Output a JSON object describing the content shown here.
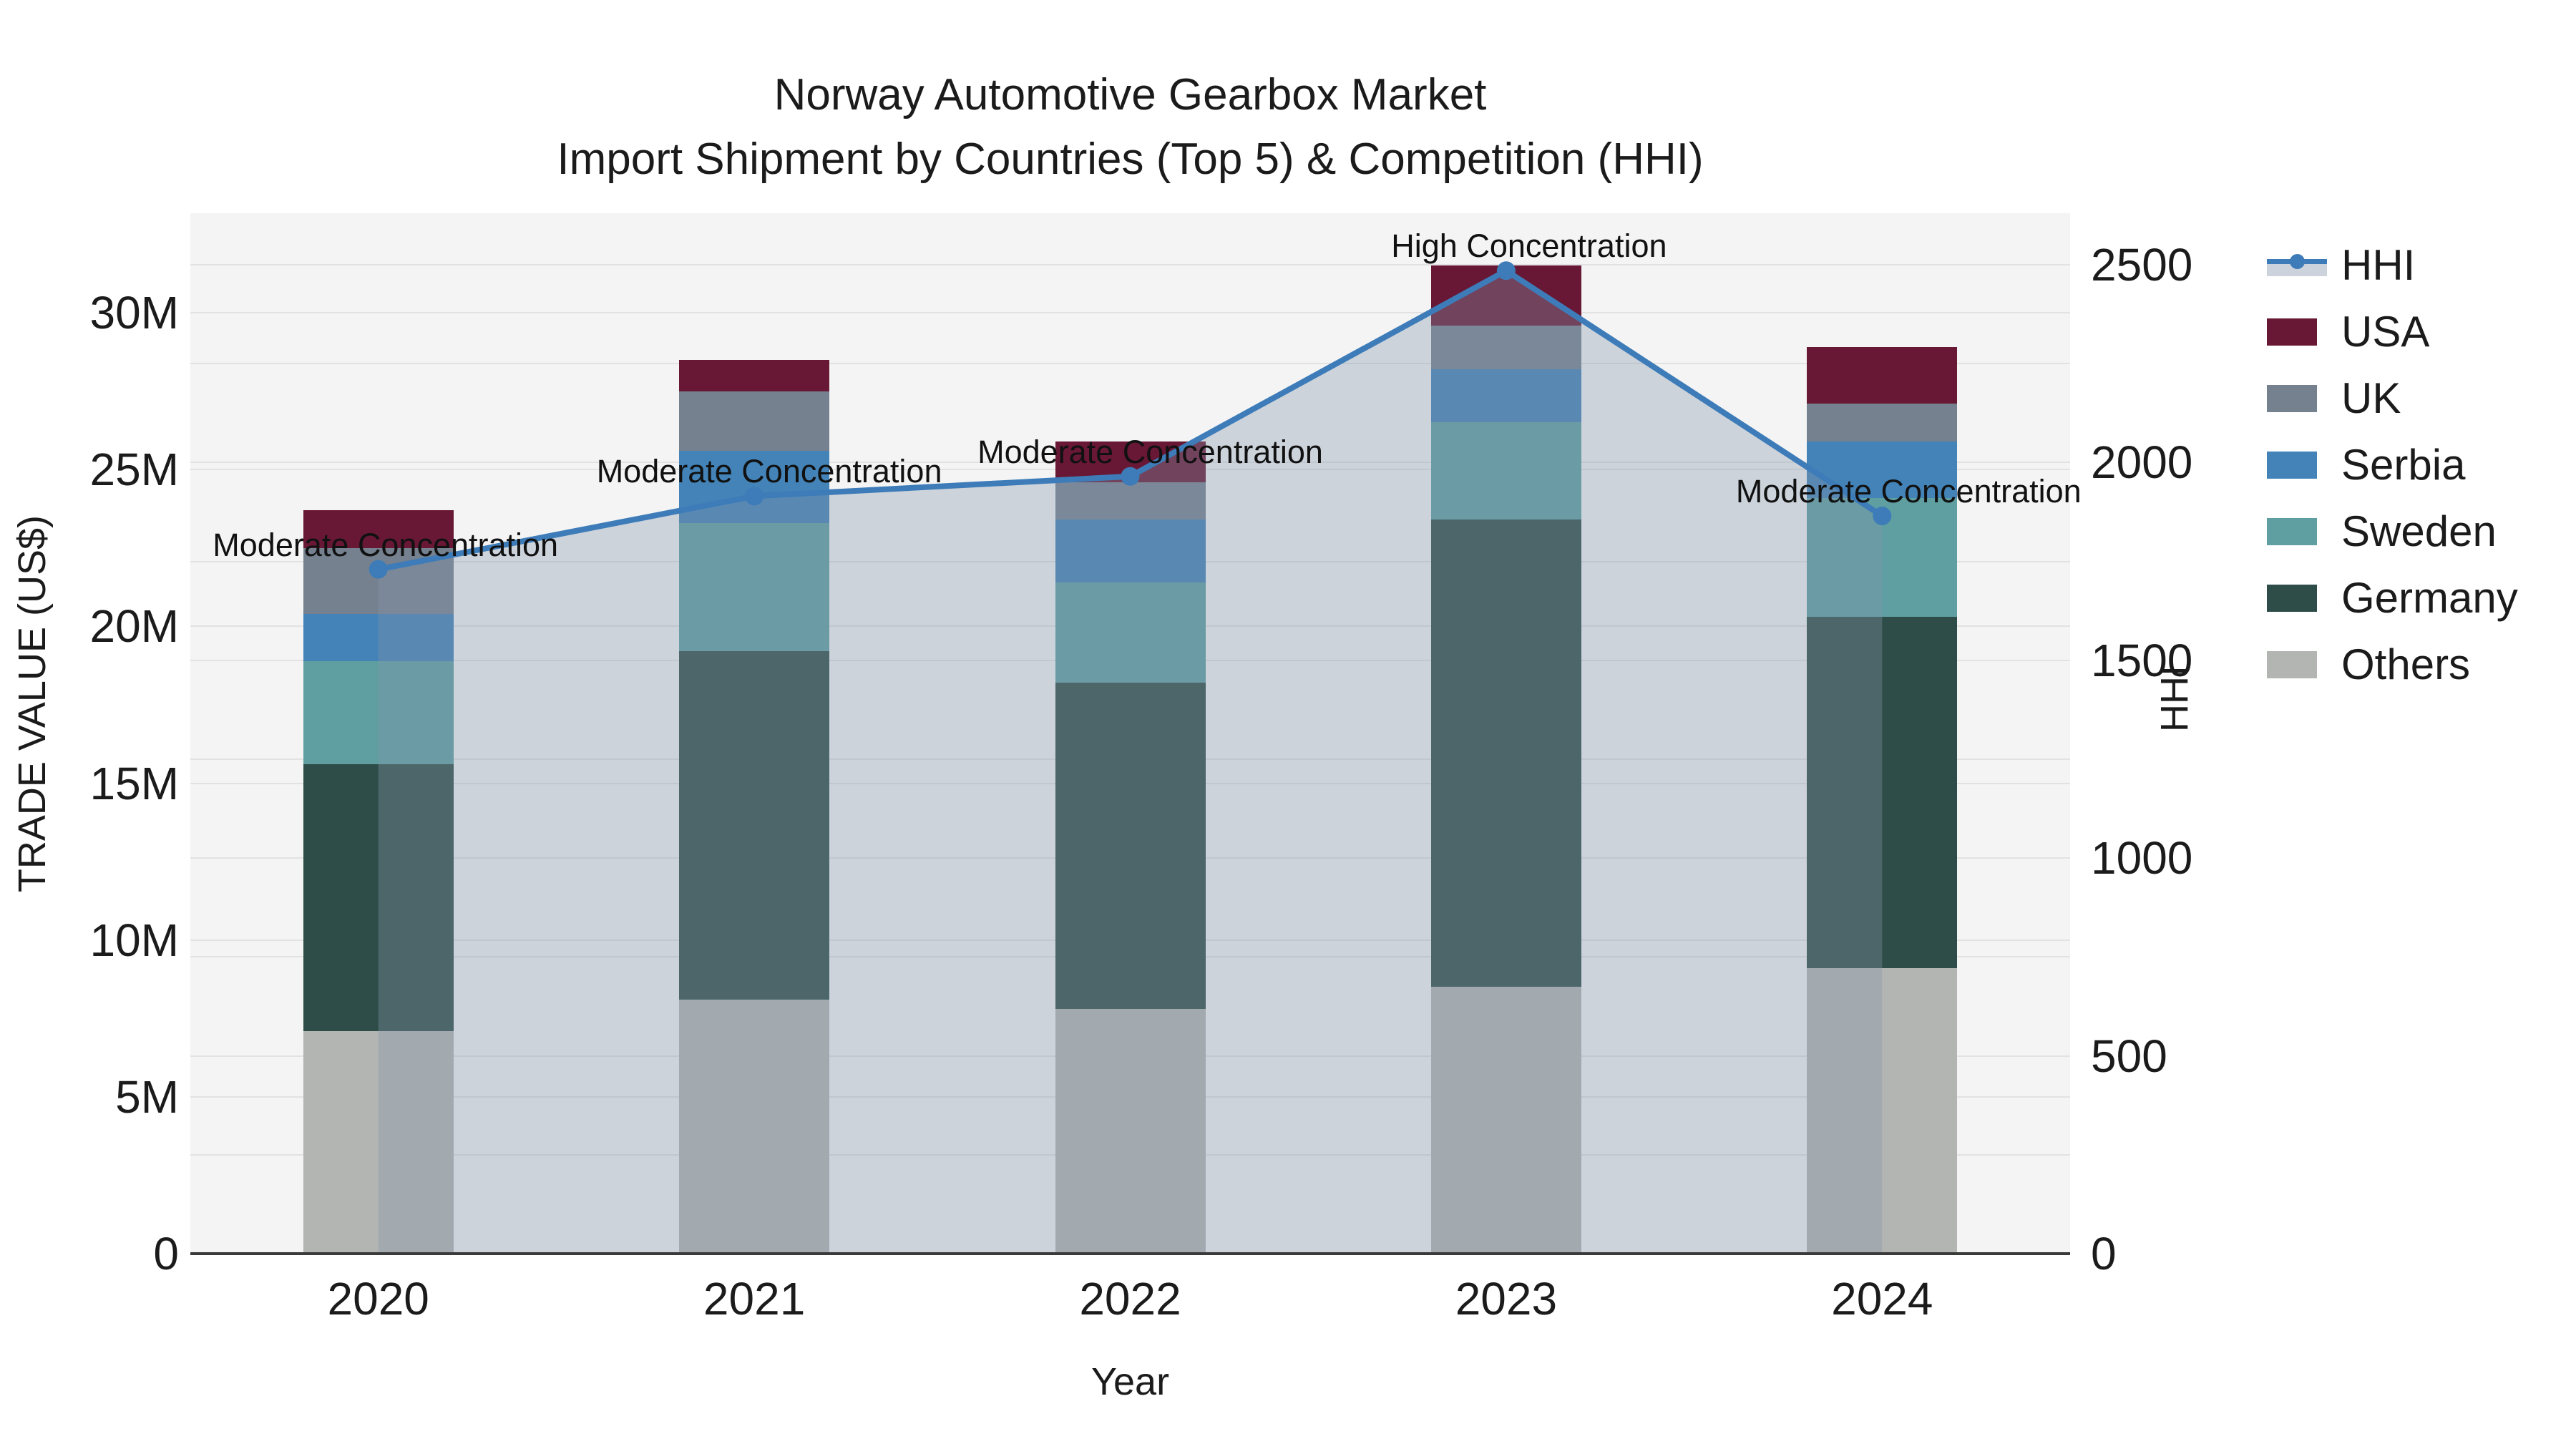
{
  "title": {
    "line1": "Norway Automotive Gearbox Market",
    "line2": "Import Shipment by Countries (Top 5) & Competition (HHI)"
  },
  "axes": {
    "x": {
      "label": "Year",
      "categories": [
        "2020",
        "2021",
        "2022",
        "2023",
        "2024"
      ]
    },
    "y_left": {
      "label": "TRADE VALUE (US$)",
      "ticks": [
        {
          "v": 0,
          "label": "0"
        },
        {
          "v": 5,
          "label": "5M"
        },
        {
          "v": 10,
          "label": "10M"
        },
        {
          "v": 15,
          "label": "15M"
        },
        {
          "v": 20,
          "label": "20M"
        },
        {
          "v": 25,
          "label": "25M"
        },
        {
          "v": 30,
          "label": "30M"
        }
      ],
      "grid_values": [
        5,
        10,
        15,
        20,
        25,
        30
      ]
    },
    "y_right": {
      "label": "HHI",
      "ticks": [
        {
          "v": 0,
          "label": "0"
        },
        {
          "v": 500,
          "label": "500"
        },
        {
          "v": 1000,
          "label": "1000"
        },
        {
          "v": 1500,
          "label": "1500"
        },
        {
          "v": 2000,
          "label": "2000"
        },
        {
          "v": 2500,
          "label": "2500"
        }
      ],
      "grid_values": [
        250,
        500,
        750,
        1000,
        1250,
        1500,
        1750,
        2000,
        2250,
        2500
      ]
    }
  },
  "chart_data": {
    "type": "bar",
    "subtype": "stacked-bars-with-line",
    "categories": [
      "2020",
      "2021",
      "2022",
      "2023",
      "2024"
    ],
    "units_left": "Million US$",
    "stack_order_bottom_to_top": [
      "Others",
      "Germany",
      "Sweden",
      "Serbia",
      "UK",
      "USA"
    ],
    "series": [
      {
        "name": "USA",
        "color": "#681834",
        "values": [
          1.2,
          1.0,
          1.3,
          1.9,
          1.8
        ]
      },
      {
        "name": "UK",
        "color": "#75818f",
        "values": [
          2.1,
          1.9,
          1.2,
          1.4,
          1.2
        ]
      },
      {
        "name": "Serbia",
        "color": "#4383b7",
        "values": [
          1.5,
          2.3,
          2.0,
          1.7,
          1.8
        ]
      },
      {
        "name": "Sweden",
        "color": "#5f9fa1",
        "values": [
          3.3,
          4.1,
          3.2,
          3.1,
          3.8
        ]
      },
      {
        "name": "Germany",
        "color": "#2e4d48",
        "values": [
          8.5,
          11.1,
          10.4,
          14.9,
          11.2
        ]
      },
      {
        "name": "Others",
        "color": "#b3b5b2",
        "values": [
          7.1,
          8.1,
          7.8,
          8.5,
          9.1
        ]
      }
    ],
    "bar_totals": [
      23.7,
      28.5,
      25.9,
      31.5,
      28.9
    ],
    "line_series": {
      "name": "HHI",
      "axis": "right",
      "color": "#3d7cb8",
      "fill_color": "rgba(133,150,173,0.35)",
      "values": [
        1730,
        1915,
        1965,
        2485,
        1865
      ]
    },
    "annotations": [
      {
        "category": "2020",
        "text": "Moderate Concentration"
      },
      {
        "category": "2021",
        "text": "Moderate Concentration"
      },
      {
        "category": "2022",
        "text": "Moderate Concentration"
      },
      {
        "category": "2023",
        "text": "High Concentration"
      },
      {
        "category": "2024",
        "text": "Moderate Concentration"
      }
    ],
    "ylim_left": [
      0,
      33.2
    ],
    "ylim_right": [
      0,
      2630
    ],
    "grid": "on",
    "legend_position": "right"
  },
  "legend": {
    "entries": [
      {
        "name": "HHI",
        "kind": "line",
        "color": "#3d7cb8"
      },
      {
        "name": "USA",
        "kind": "square",
        "color": "#681834"
      },
      {
        "name": "UK",
        "kind": "square",
        "color": "#75818f"
      },
      {
        "name": "Serbia",
        "kind": "square",
        "color": "#4383b7"
      },
      {
        "name": "Sweden",
        "kind": "square",
        "color": "#5f9fa1"
      },
      {
        "name": "Germany",
        "kind": "square",
        "color": "#2e4d48"
      },
      {
        "name": "Others",
        "kind": "square",
        "color": "#b3b5b2"
      }
    ]
  },
  "colors": {
    "plot_background": "#f4f4f4",
    "gridline": "#e2e2e2",
    "baseline": "#3a3a3a",
    "text": "#1b1b1b",
    "hhi_area": "#ccd3dc"
  }
}
